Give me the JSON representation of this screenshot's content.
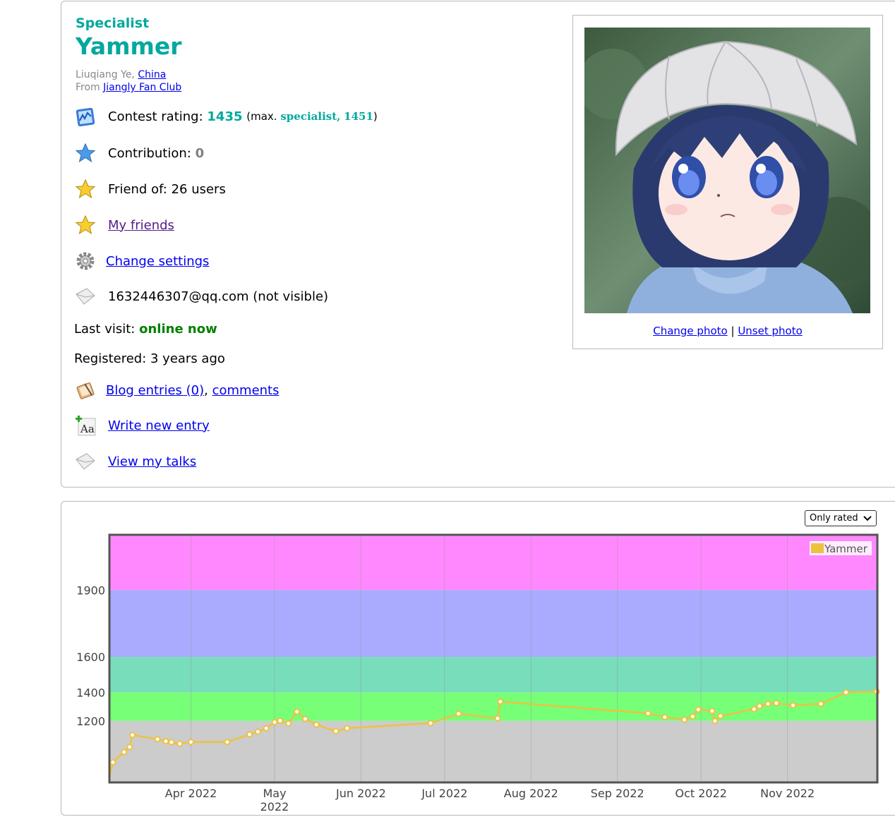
{
  "profile": {
    "rank": "Specialist",
    "handle": "Yammer",
    "name": "Liuqiang Ye,",
    "country": "China",
    "from_label": "From",
    "organization": "Jiangly Fan Club",
    "contest_rating_label": "Contest rating:",
    "contest_rating": "1435",
    "max_prefix": "(max.",
    "max_rank": "specialist,",
    "max_rating": "1451",
    "max_suffix": ")",
    "contribution_label": "Contribution:",
    "contribution": "0",
    "friend_of": "Friend of: 26 users",
    "my_friends": "My friends",
    "change_settings": "Change settings",
    "email": "1632446307@qq.com (not visible)",
    "last_visit_label": "Last visit:",
    "last_visit": "online now",
    "registered": "Registered: 3 years ago",
    "blog_entries": "Blog entries (0)",
    "comma": ",",
    "comments": "comments",
    "write_new_entry": "Write new entry",
    "view_my_talks": "View my talks",
    "change_photo": "Change photo",
    "separator": "|",
    "unset_photo": "Unset photo"
  },
  "rating_graph": {
    "filter_selected": "Only rated"
  },
  "colors": {
    "rank_cyan": "#03a89e",
    "online_green": "#008000",
    "band_gray": "#cccccc",
    "band_green": "#77ff77",
    "band_cyan": "#77ddbb",
    "band_blue": "#aaaaff",
    "band_violet": "#ff88ff",
    "series": "#edc240"
  },
  "chart_data": {
    "type": "line",
    "series": [
      {
        "name": "Yammer",
        "points": [
          [
            "2022-03-03",
            520
          ],
          [
            "2022-03-04",
            760
          ],
          [
            "2022-03-08",
            900
          ],
          [
            "2022-03-10",
            960
          ],
          [
            "2022-03-11",
            1080
          ],
          [
            "2022-03-20",
            1040
          ],
          [
            "2022-03-23",
            1020
          ],
          [
            "2022-03-25",
            1010
          ],
          [
            "2022-03-28",
            995
          ],
          [
            "2022-04-01",
            1012
          ],
          [
            "2022-04-14",
            1012
          ],
          [
            "2022-04-22",
            1085
          ],
          [
            "2022-04-25",
            1110
          ],
          [
            "2022-04-28",
            1140
          ],
          [
            "2022-05-01",
            1190
          ],
          [
            "2022-05-03",
            1202
          ],
          [
            "2022-05-06",
            1180
          ],
          [
            "2022-05-09",
            1270
          ],
          [
            "2022-05-12",
            1216
          ],
          [
            "2022-05-16",
            1170
          ],
          [
            "2022-05-23",
            1115
          ],
          [
            "2022-05-27",
            1140
          ],
          [
            "2022-06-26",
            1182
          ],
          [
            "2022-07-06",
            1255
          ],
          [
            "2022-07-20",
            1220
          ],
          [
            "2022-07-21",
            1340
          ],
          [
            "2022-09-12",
            1258
          ],
          [
            "2022-09-18",
            1230
          ],
          [
            "2022-09-25",
            1210
          ],
          [
            "2022-09-28",
            1234
          ],
          [
            "2022-09-30",
            1285
          ],
          [
            "2022-10-05",
            1275
          ],
          [
            "2022-10-06",
            1200
          ],
          [
            "2022-10-08",
            1238
          ],
          [
            "2022-10-20",
            1288
          ],
          [
            "2022-10-22",
            1310
          ],
          [
            "2022-10-25",
            1325
          ],
          [
            "2022-10-28",
            1330
          ],
          [
            "2022-11-03",
            1315
          ],
          [
            "2022-11-13",
            1325
          ],
          [
            "2022-11-22",
            1400
          ],
          [
            "2022-12-03",
            1405
          ]
        ]
      }
    ],
    "x_ticks": [
      "Apr 2022",
      "May 2022",
      "Jun 2022",
      "Jul 2022",
      "Aug 2022",
      "Sep 2022",
      "Oct 2022",
      "Nov 2022"
    ],
    "y_ticks": [
      1200,
      1400,
      1600,
      1900
    ],
    "y_scale": "power",
    "bands": [
      {
        "from": 0,
        "to": 1200,
        "color": "#cccccc"
      },
      {
        "from": 1200,
        "to": 1400,
        "color": "#77ff77"
      },
      {
        "from": 1400,
        "to": 1600,
        "color": "#77ddbb"
      },
      {
        "from": 1600,
        "to": 1900,
        "color": "#aaaaff"
      },
      {
        "from": 1900,
        "to": 2100,
        "color": "#ff88ff"
      }
    ],
    "grid": true,
    "legend": "top-right"
  }
}
